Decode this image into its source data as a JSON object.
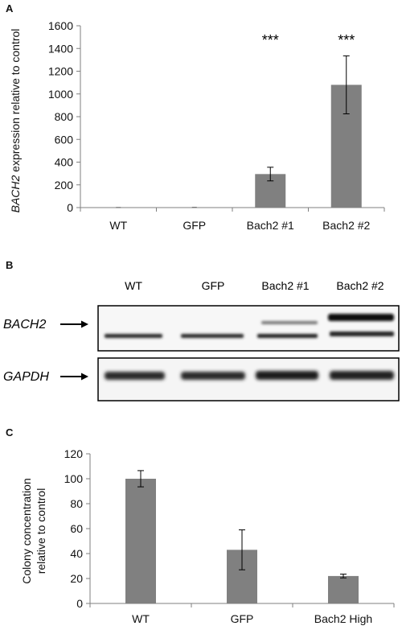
{
  "panels": {
    "a": {
      "letter": "A"
    },
    "b": {
      "letter": "B"
    },
    "c": {
      "letter": "C"
    }
  },
  "chart_data": [
    {
      "type": "bar",
      "panel": "A",
      "categories": [
        "WT",
        "GFP",
        "Bach2 #1",
        "Bach2 #2"
      ],
      "values": [
        1,
        2,
        295,
        1080
      ],
      "errors": [
        0,
        0,
        60,
        255
      ],
      "annotations": [
        "",
        "",
        "***",
        "***"
      ],
      "ylabel_italic": "BACH2",
      "ylabel_rest": " expression relative to control",
      "ylim": [
        0,
        1600
      ],
      "yticks": [
        0,
        200,
        400,
        600,
        800,
        1000,
        1200,
        1400,
        1600
      ],
      "bar_color": "#808080"
    },
    {
      "type": "bar",
      "panel": "C",
      "categories": [
        "WT",
        "GFP",
        "Bach2 High"
      ],
      "values": [
        100,
        43,
        22
      ],
      "errors": [
        6.5,
        16,
        1.5
      ],
      "ylabel_line1": "Colony concentration",
      "ylabel_line2": "relative to control",
      "ylim": [
        0,
        120
      ],
      "yticks": [
        0,
        20,
        40,
        60,
        80,
        100,
        120
      ],
      "bar_color": "#808080"
    }
  ],
  "western_blot": {
    "lanes": [
      "WT",
      "GFP",
      "Bach2 #1",
      "Bach2 #2"
    ],
    "rows": [
      {
        "label": "BACH2"
      },
      {
        "label": "GAPDH"
      }
    ]
  }
}
